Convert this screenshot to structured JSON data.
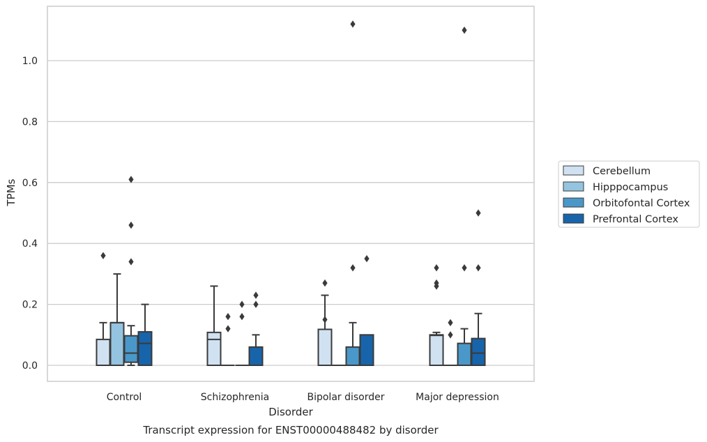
{
  "chart_data": {
    "type": "box",
    "title": "",
    "caption": "Transcript expression for ENST00000488482 by disorder",
    "xlabel": "Disorder",
    "ylabel": "TPMs",
    "ylim": [
      -0.055,
      1.18
    ],
    "yticks": [
      0.0,
      0.2,
      0.4,
      0.6,
      0.8,
      1.0
    ],
    "ytick_labels": [
      "0.0",
      "0.2",
      "0.4",
      "0.6",
      "0.8",
      "1.0"
    ],
    "grid": "horizontal",
    "legend_position": "right",
    "categories": [
      "Control",
      "Schizophrenia",
      "Bipolar disorder",
      "Major depression"
    ],
    "series": [
      {
        "name": "Cerebellum",
        "color": "#d0e1f2",
        "boxes": [
          {
            "min": 0.0,
            "q1": 0.0,
            "median": 0.0,
            "q3": 0.085,
            "max": 0.14,
            "outliers": [
              0.36
            ]
          },
          {
            "min": 0.0,
            "q1": 0.0,
            "median": 0.085,
            "q3": 0.108,
            "max": 0.26,
            "outliers": []
          },
          {
            "min": 0.0,
            "q1": 0.0,
            "median": 0.0,
            "q3": 0.118,
            "max": 0.23,
            "outliers": [
              0.27,
              0.15
            ]
          },
          {
            "min": 0.0,
            "q1": 0.0,
            "median": 0.098,
            "q3": 0.1,
            "max": 0.108,
            "outliers": [
              0.32,
              0.27,
              0.26
            ]
          }
        ]
      },
      {
        "name": "Hipppocampus",
        "color": "#94c4df",
        "boxes": [
          {
            "min": 0.0,
            "q1": 0.0,
            "median": 0.14,
            "q3": 0.14,
            "max": 0.3,
            "outliers": []
          },
          {
            "min": 0.0,
            "q1": 0.0,
            "median": 0.0,
            "q3": 0.0,
            "max": 0.0,
            "outliers": [
              0.16,
              0.12
            ]
          },
          {
            "min": 0.0,
            "q1": 0.0,
            "median": 0.0,
            "q3": 0.0,
            "max": 0.0,
            "outliers": []
          },
          {
            "min": 0.0,
            "q1": 0.0,
            "median": 0.0,
            "q3": 0.0,
            "max": 0.0,
            "outliers": [
              0.14,
              0.1
            ]
          }
        ]
      },
      {
        "name": "Orbitofontal Cortex",
        "color": "#4a98c9",
        "boxes": [
          {
            "min": 0.0,
            "q1": 0.01,
            "median": 0.04,
            "q3": 0.097,
            "max": 0.13,
            "outliers": [
              0.61,
              0.46,
              0.34
            ]
          },
          {
            "min": 0.0,
            "q1": 0.0,
            "median": 0.0,
            "q3": 0.0,
            "max": 0.0,
            "outliers": [
              0.2,
              0.16
            ]
          },
          {
            "min": 0.0,
            "q1": 0.0,
            "median": 0.0,
            "q3": 0.06,
            "max": 0.14,
            "outliers": [
              0.32
            ]
          },
          {
            "min": 0.0,
            "q1": 0.0,
            "median": 0.0,
            "q3": 0.072,
            "max": 0.12,
            "outliers": [
              0.32
            ]
          }
        ]
      },
      {
        "name": "Prefrontal Cortex",
        "color": "#1764ab",
        "boxes": [
          {
            "min": 0.0,
            "q1": 0.0,
            "median": 0.072,
            "q3": 0.11,
            "max": 0.2,
            "outliers": []
          },
          {
            "min": 0.0,
            "q1": 0.0,
            "median": 0.0,
            "q3": 0.06,
            "max": 0.1,
            "outliers": [
              0.23,
              0.2
            ]
          },
          {
            "min": 0.0,
            "q1": 0.0,
            "median": 0.0,
            "q3": 0.1,
            "max": 0.1,
            "outliers": [
              0.35
            ]
          },
          {
            "min": 0.0,
            "q1": 0.0,
            "median": 0.04,
            "q3": 0.088,
            "max": 0.17,
            "outliers": [
              0.5,
              0.32
            ]
          }
        ]
      }
    ],
    "extra_outliers": [
      {
        "category_index": 2,
        "series_index": 2,
        "value": 1.12
      },
      {
        "category_index": 3,
        "series_index": 2,
        "value": 1.1
      }
    ]
  }
}
